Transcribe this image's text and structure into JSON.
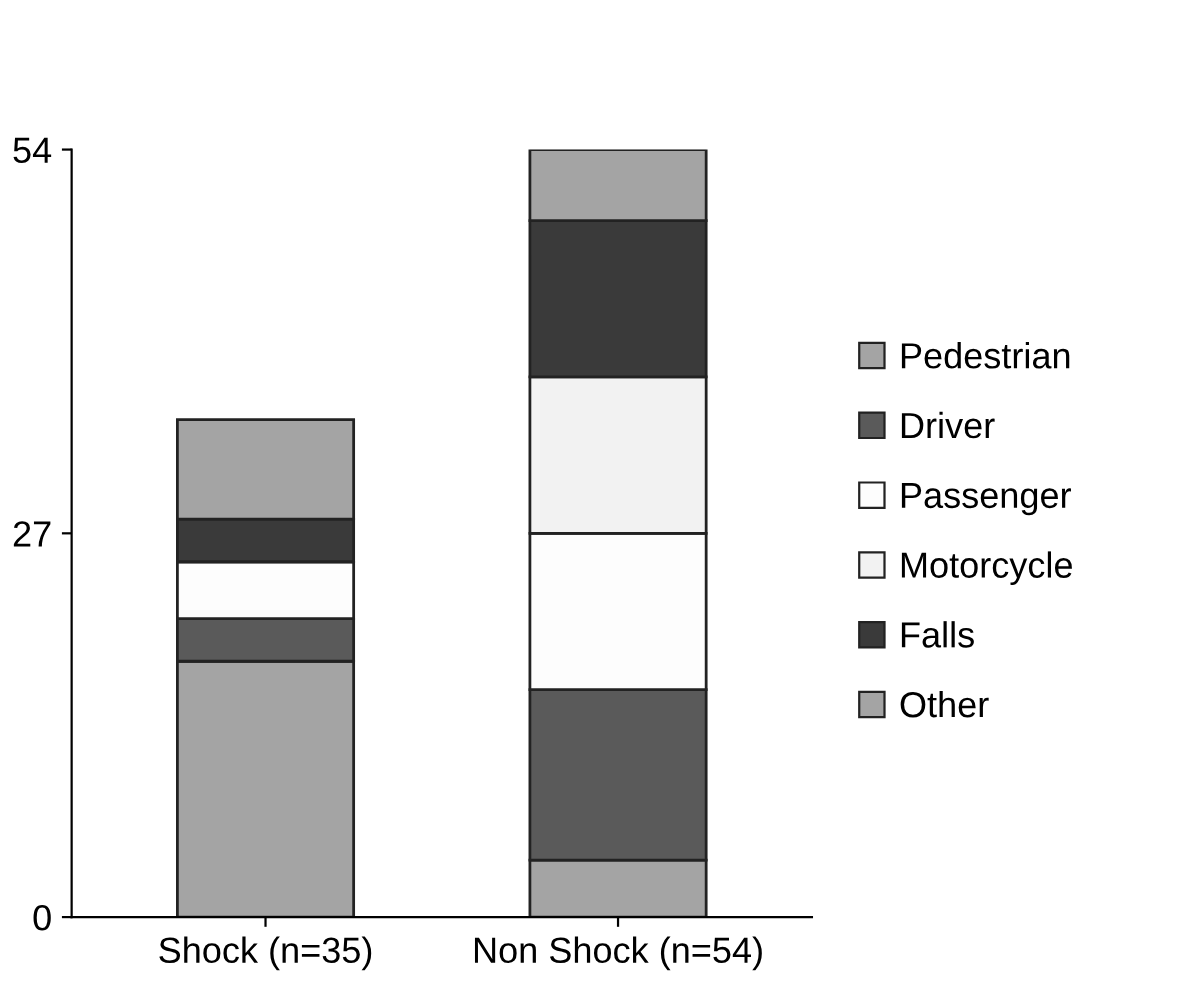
{
  "chart_data": {
    "type": "bar",
    "stacked": true,
    "categories": [
      "Shock (n=35)",
      "Non Shock (n=54)"
    ],
    "series": [
      {
        "name": "Pedestrian",
        "color": "#a4a4a4",
        "values": [
          18,
          4
        ]
      },
      {
        "name": "Driver",
        "color": "#5a5a5a",
        "values": [
          3,
          12
        ]
      },
      {
        "name": "Passenger",
        "color": "#fdfdfd",
        "values": [
          4,
          11
        ]
      },
      {
        "name": "Motorcycle",
        "color": "#f2f2f2",
        "values": [
          0,
          11
        ]
      },
      {
        "name": "Falls",
        "color": "#3a3a3a",
        "values": [
          3,
          11
        ]
      },
      {
        "name": "Other",
        "color": "#a4a4a4",
        "values": [
          7,
          5
        ]
      }
    ],
    "ylim": [
      0,
      54
    ],
    "yticks": [
      0,
      27,
      54
    ],
    "grid": false,
    "legend": "right"
  }
}
